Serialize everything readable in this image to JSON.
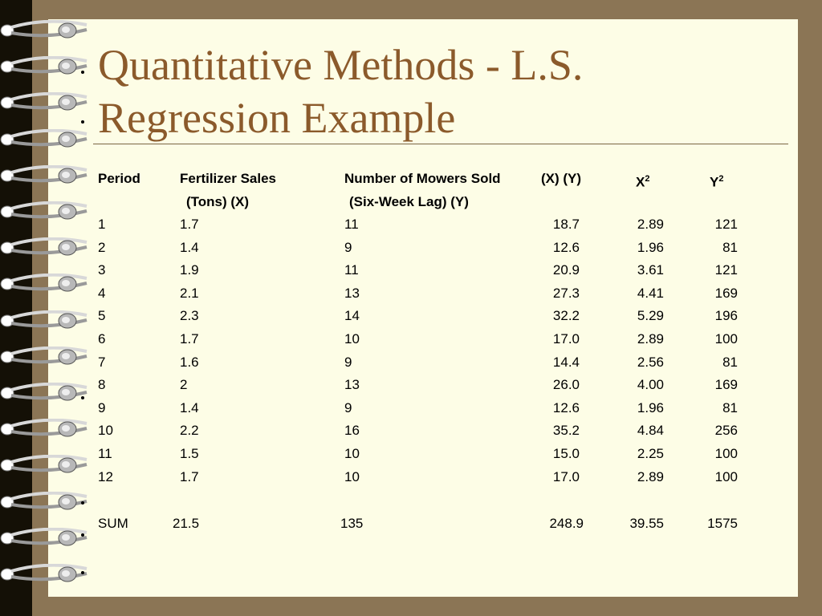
{
  "title": {
    "line1": "Quantitative Methods - L.S.",
    "line2": "Regression Example"
  },
  "header_row1": [
    "Period",
    "Fertilizer Sales",
    "Number of Mowers Sold",
    "(X) (Y)",
    "X",
    "Y"
  ],
  "header_sup": [
    "2",
    "2"
  ],
  "header_row2": [
    "(Tons)   (X)",
    "(Six-Week Lag)   (Y)"
  ],
  "rows": [
    [
      "1",
      "1.7",
      "11",
      "18.7",
      "2.89",
      "121"
    ],
    [
      "2",
      "1.4",
      "9",
      "12.6",
      "1.96",
      "81"
    ],
    [
      "3",
      "1.9",
      "11",
      "20.9",
      "3.61",
      "121"
    ],
    [
      "4",
      "2.1",
      "13",
      "27.3",
      "4.41",
      "169"
    ],
    [
      "5",
      "2.3",
      "14",
      "32.2",
      "5.29",
      "196"
    ],
    [
      "6",
      "1.7",
      "10",
      "17.0",
      "2.89",
      "100"
    ],
    [
      "7",
      "1.6",
      "9",
      "14.4",
      "2.56",
      "81"
    ],
    [
      "8",
      "2",
      "13",
      "26.0",
      "4.00",
      "169"
    ],
    [
      "9",
      "1.4",
      "9",
      "12.6",
      "1.96",
      "81"
    ],
    [
      "10",
      "2.2",
      "16",
      "35.2",
      "4.84",
      "256"
    ],
    [
      "11",
      "1.5",
      "10",
      "15.0",
      "2.25",
      "100"
    ],
    [
      "12",
      "1.7",
      "10",
      "17.0",
      "2.89",
      "100"
    ]
  ],
  "sum_row": [
    "SUM",
    "21.5",
    "135",
    "248.9",
    "39.55",
    "1575"
  ],
  "colors": {
    "background": "#8b7555",
    "paper": "#fdfde6",
    "title": "#8b5a2b",
    "binding": "#141006"
  },
  "icons": {
    "binding": "spiral-ring-icon"
  }
}
